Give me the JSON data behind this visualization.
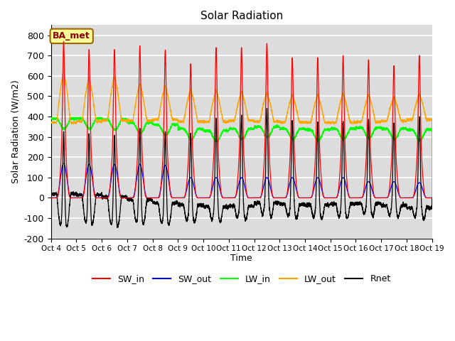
{
  "title": "Solar Radiation",
  "ylabel": "Solar Radiation (W/m2)",
  "xlabel": "Time",
  "ylim": [
    -200,
    850
  ],
  "yticks": [
    -200,
    -100,
    0,
    100,
    200,
    300,
    400,
    500,
    600,
    700,
    800
  ],
  "n_days": 15,
  "start_day": 4,
  "pts_per_day": 288,
  "background_color": "#dcdcdc",
  "grid_color": "white",
  "series_colors": {
    "SW_in": "#ff0000",
    "SW_out": "#0000ff",
    "LW_in": "#00ff00",
    "LW_out": "#ffa500",
    "Rnet": "#000000"
  },
  "legend_label": "BA_met",
  "legend_box_color": "#ffff99",
  "legend_box_edge": "#996600",
  "sw_in_peaks": [
    770,
    730,
    730,
    748,
    728,
    660,
    740,
    740,
    760,
    690,
    690,
    700,
    680,
    650,
    700
  ],
  "sw_out_peaks": [
    170,
    165,
    165,
    165,
    160,
    100,
    100,
    100,
    100,
    100,
    100,
    100,
    80,
    80,
    75
  ],
  "lw_in_night": [
    390,
    390,
    385,
    370,
    360,
    340,
    330,
    340,
    350,
    340,
    335,
    340,
    345,
    340,
    335
  ],
  "lw_in_day_bump": [
    10,
    10,
    10,
    10,
    10,
    10,
    10,
    10,
    10,
    10,
    10,
    10,
    10,
    10,
    10
  ],
  "lw_out_night": [
    370,
    375,
    380,
    380,
    385,
    375,
    375,
    380,
    375,
    372,
    370,
    370,
    373,
    378,
    385
  ],
  "lw_out_peaks": [
    595,
    570,
    575,
    540,
    530,
    515,
    510,
    505,
    500,
    490,
    490,
    495,
    490,
    480,
    495
  ],
  "rnet_night": [
    -55,
    -55,
    -55,
    -55,
    -58,
    -60,
    -60,
    -60,
    -62,
    -62,
    -62,
    -62,
    -62,
    -62,
    -120
  ]
}
